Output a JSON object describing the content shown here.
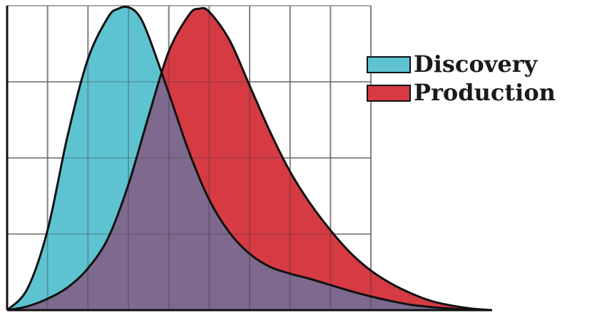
{
  "chart_data": {
    "type": "area",
    "title": "",
    "xlabel": "",
    "ylabel": "",
    "grid": true,
    "legend_position": "right",
    "xlim": [
      0,
      12
    ],
    "ylim": [
      0,
      4
    ],
    "series": [
      {
        "name": "Discovery",
        "color": "#5ec3d1",
        "x": [
          0,
          0.5,
          1,
          1.5,
          2,
          2.5,
          2.75,
          3,
          3.25,
          3.5,
          4,
          4.5,
          5,
          5.5,
          6,
          6.5,
          7,
          7.5,
          8,
          8.5,
          9,
          9.5,
          10,
          10.5,
          11,
          11.5
        ],
        "y": [
          0,
          0.28,
          1.05,
          2.3,
          3.3,
          3.85,
          3.96,
          3.98,
          3.88,
          3.6,
          2.85,
          2.08,
          1.45,
          1.02,
          0.74,
          0.57,
          0.48,
          0.41,
          0.33,
          0.25,
          0.18,
          0.12,
          0.07,
          0.04,
          0.02,
          0
        ]
      },
      {
        "name": "Production",
        "color": "#d63a43",
        "x": [
          0,
          0.5,
          1,
          1.5,
          2,
          2.5,
          3,
          3.5,
          4,
          4.5,
          4.75,
          5,
          5.5,
          6,
          6.5,
          7,
          7.5,
          8,
          8.5,
          9,
          9.5,
          10,
          10.5,
          11,
          11.5,
          12
        ],
        "y": [
          0,
          0.05,
          0.15,
          0.3,
          0.55,
          0.95,
          1.65,
          2.55,
          3.4,
          3.88,
          3.96,
          3.92,
          3.55,
          2.95,
          2.35,
          1.82,
          1.4,
          1.05,
          0.75,
          0.52,
          0.35,
          0.22,
          0.12,
          0.06,
          0.02,
          0
        ]
      }
    ],
    "overlap_color": "#7d6a8e"
  }
}
